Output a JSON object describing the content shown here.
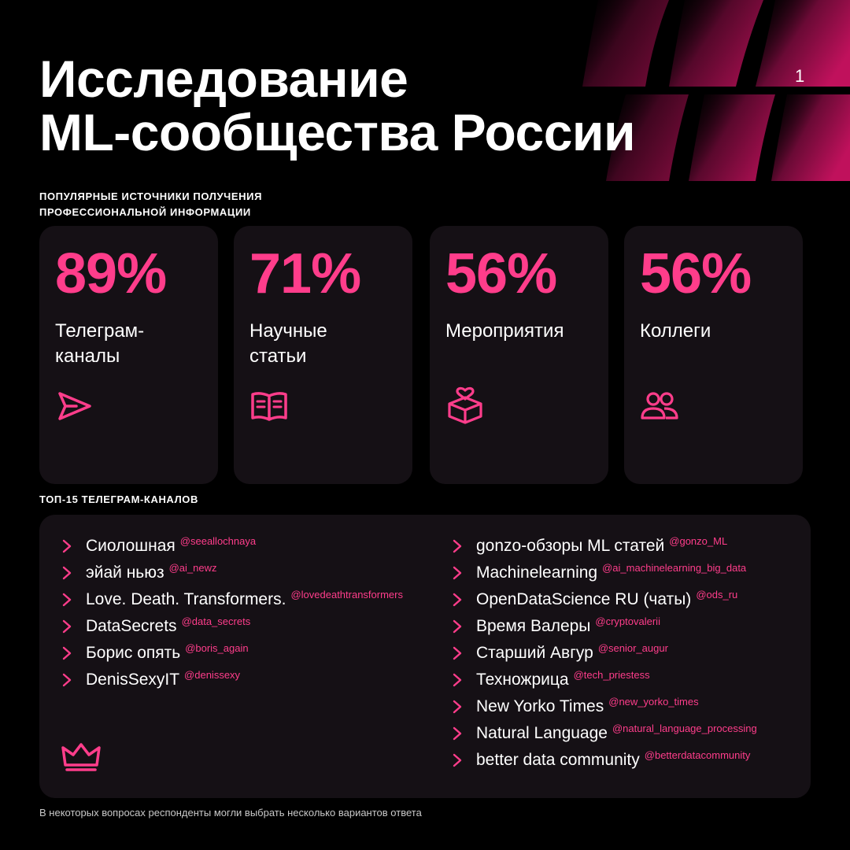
{
  "header": {
    "title_line1": "Исследование",
    "title_line2": "ML-сообщества России",
    "page_number": "1"
  },
  "sources": {
    "heading_line1": "ПОПУЛЯРНЫЕ ИСТОЧНИКИ ПОЛУЧЕНИЯ",
    "heading_line2": "ПРОФЕССИОНАЛЬНОЙ ИНФОРМАЦИИ",
    "cards": [
      {
        "percent": "89%",
        "label_line1": "Телеграм-",
        "label_line2": "каналы",
        "icon": "send-icon"
      },
      {
        "percent": "71%",
        "label_line1": "Научные",
        "label_line2": "статьи",
        "icon": "book-icon"
      },
      {
        "percent": "56%",
        "label_line1": "Мероприятия",
        "label_line2": "",
        "icon": "gift-box-heart-icon"
      },
      {
        "percent": "56%",
        "label_line1": "Коллеги",
        "label_line2": "",
        "icon": "users-icon"
      }
    ]
  },
  "channels": {
    "heading": "ТОП-15 ТЕЛЕГРАМ-КАНАЛОВ",
    "left": [
      {
        "name": "Сиолошная",
        "handle": "@seeallochnaya"
      },
      {
        "name": "эйай ньюз",
        "handle": "@ai_newz"
      },
      {
        "name": "Love. Death. Transformers.",
        "handle": "@lovedeathtransformers"
      },
      {
        "name": "DataSecrets",
        "handle": "@data_secrets"
      },
      {
        "name": "Борис опять",
        "handle": "@boris_again"
      },
      {
        "name": "DenisSexyIT",
        "handle": "@denissexy"
      }
    ],
    "right": [
      {
        "name": "gonzo-обзоры ML статей",
        "handle": "@gonzo_ML"
      },
      {
        "name": "Machinelearning",
        "handle": "@ai_machinelearning_big_data"
      },
      {
        "name": "OpenDataScience RU (чаты)",
        "handle": "@ods_ru"
      },
      {
        "name": "Время Валеры",
        "handle": "@cryptovalerii"
      },
      {
        "name": "Старший Авгур",
        "handle": "@senior_augur"
      },
      {
        "name": "Техножрица",
        "handle": "@tech_priestess"
      },
      {
        "name": "New Yorko Times",
        "handle": "@new_yorko_times"
      },
      {
        "name": "Natural Language",
        "handle": "@natural_language_processing"
      },
      {
        "name": "better data community",
        "handle": "@betterdatacommunity"
      }
    ],
    "icon": "crown-icon"
  },
  "footnote": "В некоторых вопросах респонденты могли выбрать несколько вариантов ответа",
  "colors": {
    "accent": "#ff3d8b",
    "background": "#000000",
    "card": "#151015",
    "text": "#ffffff"
  }
}
